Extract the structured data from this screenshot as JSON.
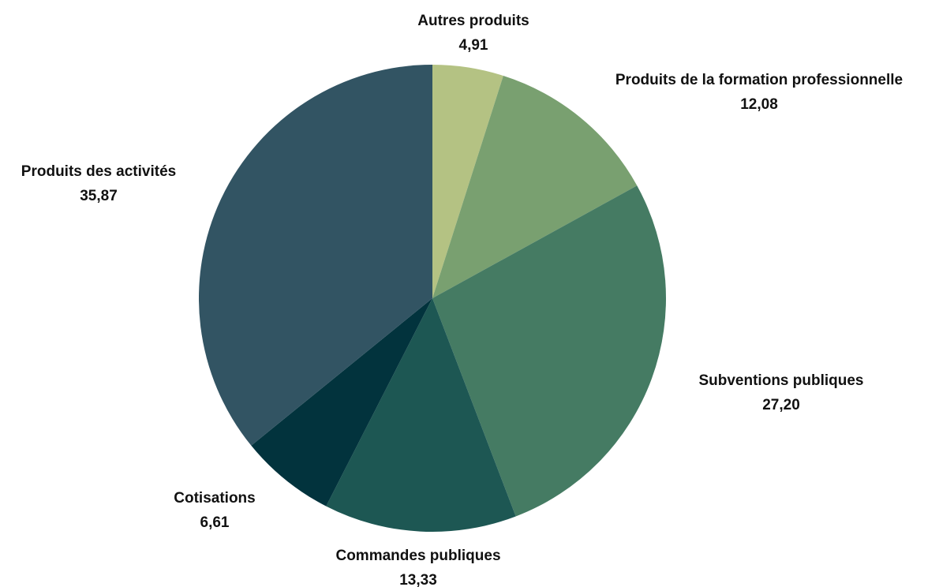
{
  "chart_data": {
    "type": "pie",
    "title": "",
    "start_angle_deg": 0,
    "direction": "clockwise",
    "slices": [
      {
        "label": "Autres produits",
        "value": 4.91,
        "display_value": "4,91",
        "color": "#b4c283"
      },
      {
        "label": "Produits de la formation professionnelle",
        "value": 12.08,
        "display_value": "12,08",
        "color": "#79a070"
      },
      {
        "label": "Subventions publiques",
        "value": 27.2,
        "display_value": "27,20",
        "color": "#457b63"
      },
      {
        "label": "Commandes publiques",
        "value": 13.33,
        "display_value": "13,33",
        "color": "#1d5753"
      },
      {
        "label": "Cotisations",
        "value": 6.61,
        "display_value": "6,61",
        "color": "#02333d"
      },
      {
        "label": "Produits des activités",
        "value": 35.87,
        "display_value": "35,87",
        "color": "#325463"
      }
    ]
  }
}
